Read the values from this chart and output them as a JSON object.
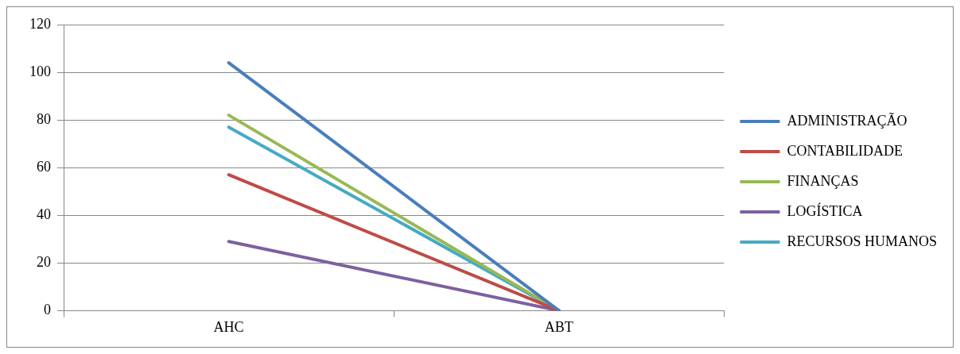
{
  "chart_data": {
    "type": "line",
    "categories": [
      "AHC",
      "ABT"
    ],
    "series": [
      {
        "name": "ADMINISTRAÇÃO",
        "color": "#4a7ebb",
        "values": [
          104,
          0
        ]
      },
      {
        "name": "CONTABILIDADE",
        "color": "#be4b48",
        "values": [
          57,
          0
        ]
      },
      {
        "name": "FINANÇAS",
        "color": "#98b954",
        "values": [
          82,
          0
        ]
      },
      {
        "name": "LOGÍSTICA",
        "color": "#7d60a0",
        "values": [
          29,
          0
        ]
      },
      {
        "name": "RECURSOS HUMANOS",
        "color": "#46aac5",
        "values": [
          77,
          0
        ]
      }
    ],
    "ylim": [
      0,
      120
    ],
    "yticks": [
      0,
      20,
      40,
      60,
      80,
      100,
      120
    ],
    "grid": "y",
    "legend": "right",
    "marker": "none",
    "line_style": "solid"
  }
}
